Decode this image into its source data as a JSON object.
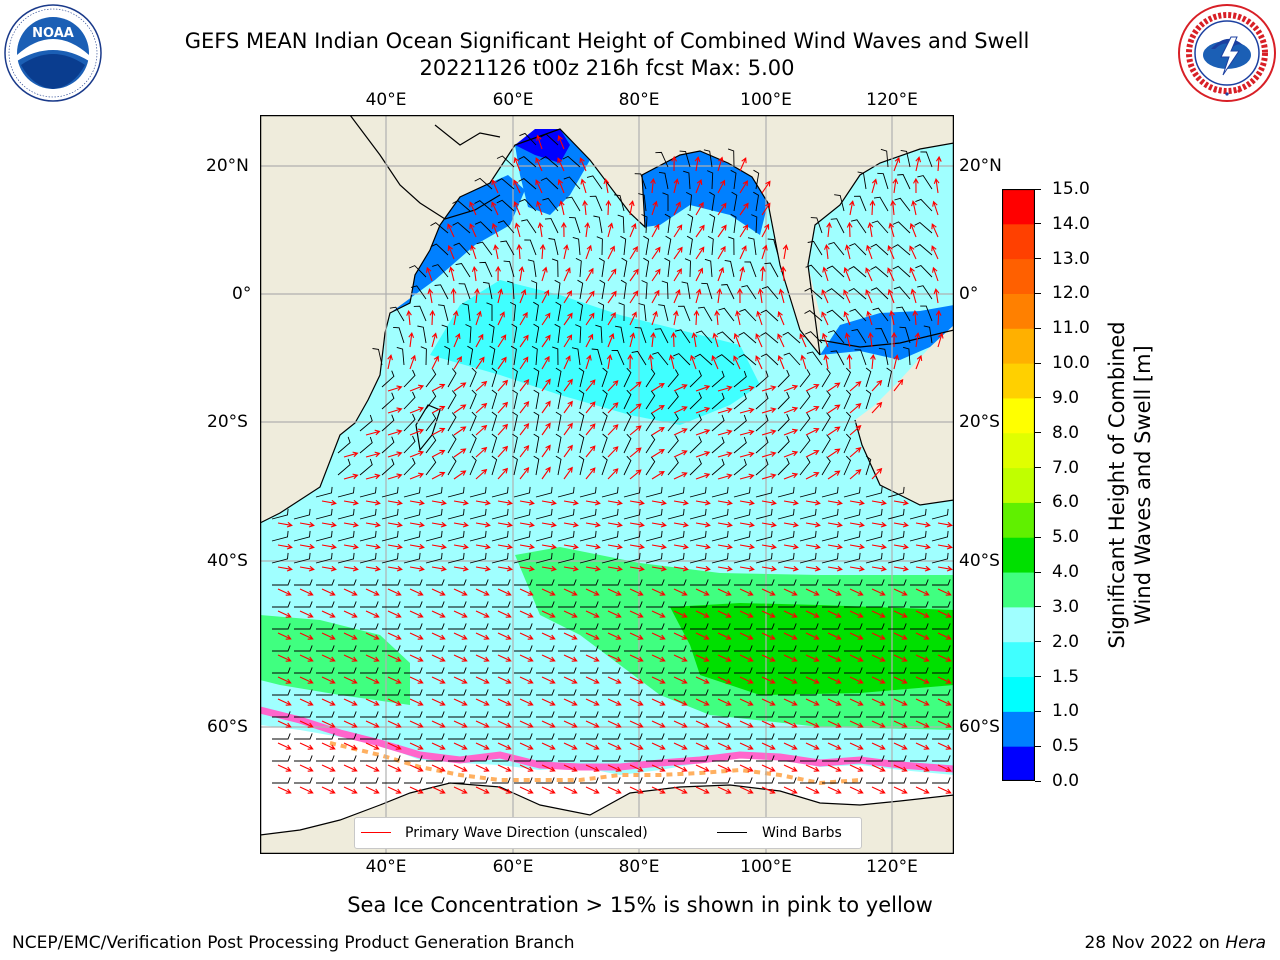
{
  "header": {
    "title_line1": "GEFS MEAN Indian Ocean Significant Height of Combined Wind Waves and Swell",
    "title_line2": "20221126 t00z 216h fcst   Max: 5.00"
  },
  "logos": {
    "left": {
      "icon": "noaa-logo",
      "text": "NOAA",
      "ring_text": "NATIONAL OCEANIC AND ATMOSPHERIC ADMINISTRATION · U.S. DEPARTMENT OF COMMERCE"
    },
    "right": {
      "icon": "national-weather-service-logo",
      "ring_text": "NATIONAL WEATHER SERVICE"
    }
  },
  "map": {
    "lon_ticks": [
      "40°E",
      "60°E",
      "80°E",
      "100°E",
      "120°E"
    ],
    "lat_ticks": [
      "20°N",
      "0°",
      "20°S",
      "40°S",
      "60°S"
    ],
    "colors": {
      "land": "#efecdc",
      "ice_free": "#ffffff",
      "wind_barb": "#000000",
      "wave_arrow": "#ff0000"
    },
    "legend": {
      "wave_label": "Primary Wave Direction (unscaled)",
      "wind_label": "Wind Barbs"
    }
  },
  "colorbar": {
    "label_line1": "Significant Height of Combined",
    "label_line2": "Wind Waves and Swell [m]",
    "ticks": [
      "0.0",
      "0.5",
      "1.0",
      "1.5",
      "2.0",
      "3.0",
      "4.0",
      "5.0",
      "6.0",
      "7.0",
      "8.0",
      "9.0",
      "10.0",
      "11.0",
      "12.0",
      "13.0",
      "14.0",
      "15.0"
    ],
    "colors": [
      "#0000ff",
      "#0080ff",
      "#00ffff",
      "#40ffff",
      "#a0ffff",
      "#40ff80",
      "#00e000",
      "#60f000",
      "#c0ff00",
      "#e0ff00",
      "#ffff00",
      "#ffd000",
      "#ffb000",
      "#ff8000",
      "#ff6000",
      "#ff4000",
      "#ff0000"
    ]
  },
  "footer": {
    "ice_note": "Sea Ice Concentration > 15% is shown in pink to yellow",
    "left": "NCEP/EMC/Verification Post Processing Product Generation Branch",
    "right_date": "28 Nov 2022 on ",
    "right_host": "Hera"
  }
}
